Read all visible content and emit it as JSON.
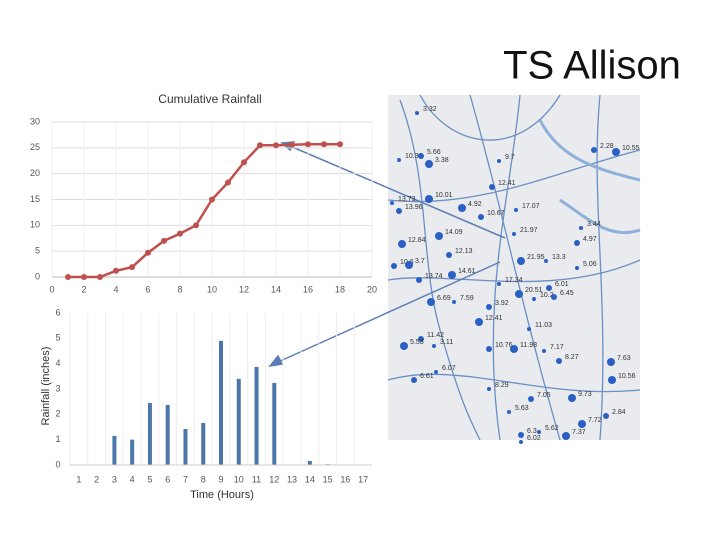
{
  "title": "TS Allison",
  "chart_data": [
    {
      "type": "line",
      "title": "Cumulative Rainfall",
      "x": [
        1,
        2,
        3,
        4,
        5,
        6,
        7,
        8,
        9,
        10,
        11,
        12,
        13,
        14,
        15,
        16,
        17,
        18
      ],
      "values": [
        0,
        0,
        0,
        1.2,
        1.9,
        4.7,
        7.0,
        8.4,
        10.0,
        15.0,
        18.3,
        22.2,
        25.5,
        25.5,
        25.6,
        25.7,
        25.7,
        25.7
      ],
      "color": "#c0504d",
      "xlim": [
        0,
        20
      ],
      "xticks": [
        0,
        2,
        4,
        6,
        8,
        10,
        12,
        14,
        16,
        18,
        20
      ],
      "ylim": [
        0,
        30
      ],
      "yticks": [
        0,
        5,
        10,
        15,
        20,
        25,
        30
      ],
      "grid": true
    },
    {
      "type": "bar",
      "x_label": "Time (Hours)",
      "y_label": "Rainfall (inches)",
      "categories": [
        "1",
        "2",
        "3",
        "4",
        "5",
        "6",
        "7",
        "8",
        "9",
        "10",
        "11",
        "12",
        "13",
        "14",
        "15",
        "16",
        "17"
      ],
      "values": [
        0,
        0.02,
        1.15,
        1.0,
        2.45,
        2.37,
        1.42,
        1.66,
        4.9,
        3.4,
        3.87,
        3.24,
        0,
        0.16,
        0.03,
        0,
        0
      ],
      "color": "#4a76a8",
      "ylim": [
        0,
        6
      ],
      "yticks": [
        0,
        1,
        2,
        3,
        4,
        5,
        6
      ],
      "grid": true
    }
  ],
  "map": {
    "labels": [
      "3.32",
      "2.28",
      "10.55",
      "10.39",
      "5.66",
      "3.38",
      "9.7",
      "12.41",
      "10.01",
      "13.73",
      "13.96",
      "4.92",
      "17.07",
      "10.67",
      "14.09",
      "3.44",
      "4.97",
      "12.84",
      "21.97",
      "12.13",
      "21.95",
      "13.3",
      "10.6",
      "3.7",
      "5.06",
      "13.74",
      "14.61",
      "17.34",
      "6.01",
      "20.51",
      "10.2",
      "6.45",
      "6.69",
      "7.59",
      "3.92",
      "12.41",
      "11.03",
      "11.42",
      "5.53",
      "3.11",
      "10.76",
      "11.98",
      "7.17",
      "8.27",
      "7.63",
      "6.07",
      "6.61",
      "10.56",
      "8.29",
      "7.05",
      "9.73",
      "5.63",
      "2.84",
      "7.72",
      "5.62",
      "6.3",
      "7.37",
      "6.02"
    ]
  }
}
